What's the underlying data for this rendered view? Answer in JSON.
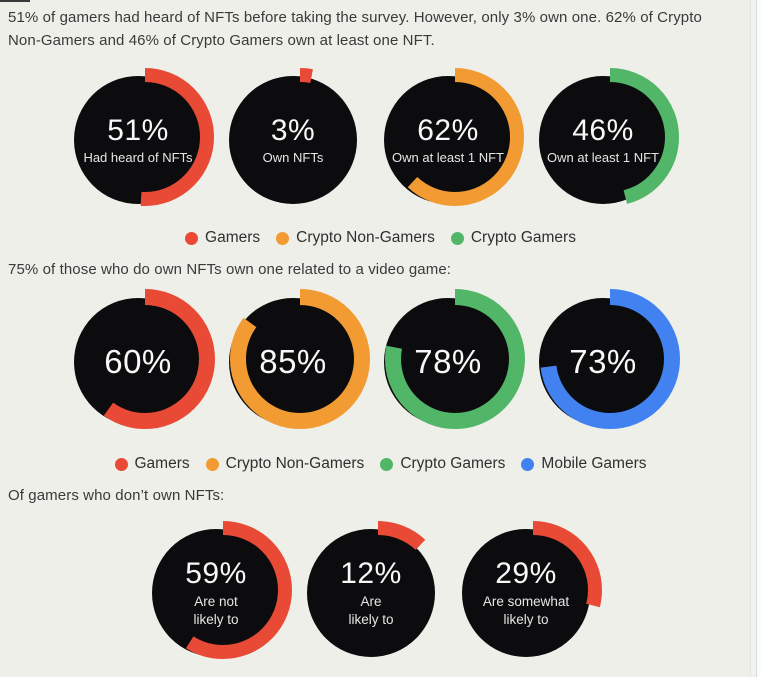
{
  "colors": {
    "background": "#eeefe9",
    "red": "#e84a36",
    "orange": "#f39b33",
    "green": "#52b669",
    "blue": "#4182f0",
    "donut_fill": "#0c0c0e",
    "heading_text": "#3a3a3a",
    "donut_text": "#f8f8f8"
  },
  "chart_data": [
    {
      "type": "pie",
      "subtype": "donut-row",
      "title": "51% of gamers had heard of NFTs before taking the survey. However, only 3% own one. 62% of Crypto\nNon-Gamers and 46% of Crypto Gamers own at least one NFT.",
      "unit": "%",
      "series": [
        {
          "name": "Gamers",
          "value": 51,
          "display": "51%",
          "label": "Had heard of NFTs",
          "color": "#e84a36"
        },
        {
          "name": "Gamers",
          "value": 3,
          "display": "3%",
          "label": "Own NFTs",
          "color": "#e84a36"
        },
        {
          "name": "Crypto Non-Gamers",
          "value": 62,
          "display": "62%",
          "label": "Own at least 1 NFT",
          "color": "#f39b33"
        },
        {
          "name": "Crypto Gamers",
          "value": 46,
          "display": "46%",
          "label": "Own at least 1 NFT",
          "color": "#52b669"
        }
      ],
      "legend": [
        {
          "label": "Gamers",
          "color": "#e84a36"
        },
        {
          "label": "Crypto Non-Gamers",
          "color": "#f39b33"
        },
        {
          "label": "Crypto Gamers",
          "color": "#52b669"
        }
      ],
      "legend_position": "bottom-center"
    },
    {
      "type": "pie",
      "subtype": "donut-row",
      "title": "75% of those who do own NFTs own one related to a video game:",
      "unit": "%",
      "series": [
        {
          "name": "Gamers",
          "value": 60,
          "display": "60%",
          "label": "",
          "color": "#e84a36"
        },
        {
          "name": "Crypto Non-Gamers",
          "value": 85,
          "display": "85%",
          "label": "",
          "color": "#f39b33"
        },
        {
          "name": "Crypto Gamers",
          "value": 78,
          "display": "78%",
          "label": "",
          "color": "#52b669"
        },
        {
          "name": "Mobile Gamers",
          "value": 73,
          "display": "73%",
          "label": "",
          "color": "#4182f0"
        }
      ],
      "legend": [
        {
          "label": "Gamers",
          "color": "#e84a36"
        },
        {
          "label": "Crypto Non-Gamers",
          "color": "#f39b33"
        },
        {
          "label": "Crypto Gamers",
          "color": "#52b669"
        },
        {
          "label": "Mobile Gamers",
          "color": "#4182f0"
        }
      ],
      "legend_position": "bottom-center"
    },
    {
      "type": "pie",
      "subtype": "donut-row",
      "title": "Of gamers who don’t own NFTs:",
      "unit": "%",
      "series": [
        {
          "name": "Gamers",
          "value": 59,
          "display": "59%",
          "label": "Are not\nlikely to",
          "color": "#e84a36"
        },
        {
          "name": "Gamers",
          "value": 12,
          "display": "12%",
          "label": "Are\nlikely to",
          "color": "#e84a36"
        },
        {
          "name": "Gamers",
          "value": 29,
          "display": "29%",
          "label": "Are somewhat\nlikely to",
          "color": "#e84a36"
        }
      ],
      "legend": [],
      "legend_position": "none"
    }
  ]
}
